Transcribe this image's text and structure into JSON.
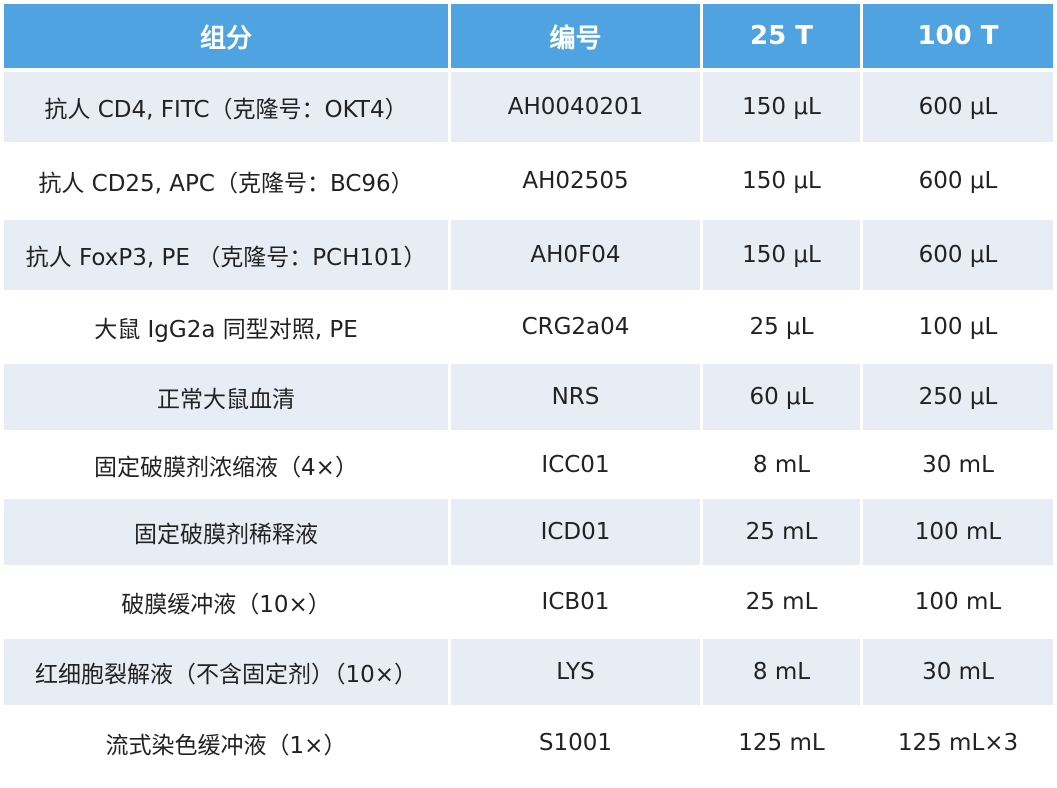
{
  "table": {
    "headers": [
      "组分",
      "编号",
      "25 T",
      "100 T"
    ],
    "rows": [
      [
        "抗人 CD4, FITC（克隆号：OKT4）",
        "AH0040201",
        "150 μL",
        "600 μL"
      ],
      [
        "抗人 CD25, APC（克隆号：BC96）",
        "AH02505",
        "150 μL",
        "600 μL"
      ],
      [
        "抗人 FoxP3, PE （克隆号：PCH101）",
        "AH0F04",
        "150 μL",
        "600 μL"
      ],
      [
        "大鼠 IgG2a 同型对照, PE",
        "CRG2a04",
        "25 μL",
        "100 μL"
      ],
      [
        "正常大鼠血清",
        "NRS",
        "60 μL",
        "250 μL"
      ],
      [
        "固定破膜剂浓缩液（4×）",
        "ICC01",
        "8 mL",
        "30 mL"
      ],
      [
        "固定破膜剂稀释液",
        "ICD01",
        "25 mL",
        "100 mL"
      ],
      [
        "破膜缓冲液（10×）",
        "ICB01",
        "25 mL",
        "100 mL"
      ],
      [
        "红细胞裂解液（不含固定剂）（10×）",
        "LYS",
        "8 mL",
        "30 mL"
      ],
      [
        "流式染色缓冲液（1×）",
        "S1001",
        "125 mL",
        "125 mL×3"
      ]
    ]
  },
  "colors": {
    "header_bg": "#4fa3e0",
    "header_text": "#ffffff",
    "row_shade": "#e8edf5",
    "row_plain": "#ffffff"
  }
}
